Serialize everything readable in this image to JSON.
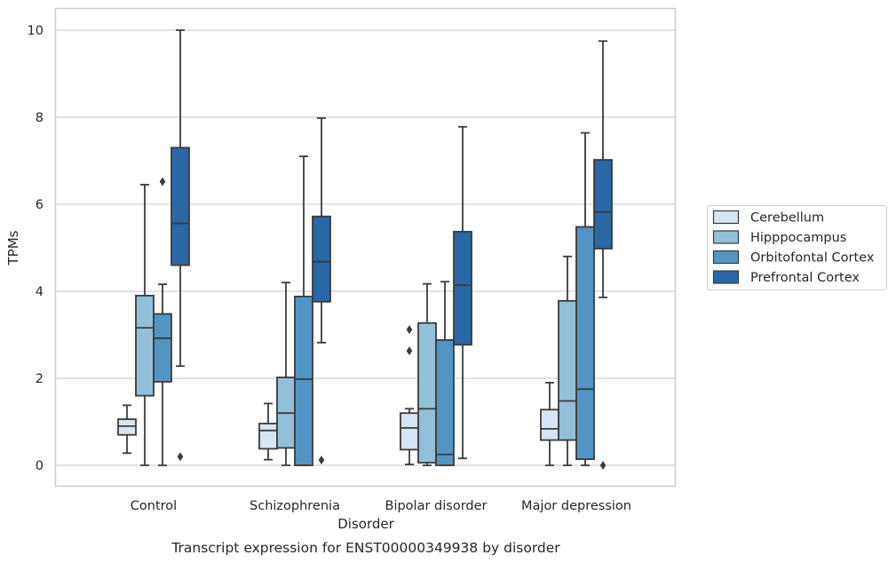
{
  "caption": "Transcript expression for ENST00000349938 by disorder",
  "colors": {
    "Cerebellum": "#d6e5f3",
    "Hipppocampus": "#94bfd9",
    "Orbitofontal Cortex": "#5295c3",
    "Prefrontal Cortex": "#2a67a5",
    "edge": "#3b3b3b",
    "grid": "#d0d0d0",
    "frame": "#cccccc"
  },
  "chart_data": {
    "type": "boxplot",
    "xlabel": "Disorder",
    "ylabel": "TPMs",
    "ylim": [
      -0.48,
      10.5
    ],
    "yticks": [
      0,
      2,
      4,
      6,
      8,
      10
    ],
    "grid": true,
    "legend_position": "right",
    "categories": [
      "Control",
      "Schizophrenia",
      "Bipolar disorder",
      "Major depression"
    ],
    "series": [
      {
        "name": "Cerebellum",
        "boxes": [
          {
            "whislo": 0.28,
            "q1": 0.7,
            "med": 0.9,
            "q3": 1.06,
            "whishi": 1.38,
            "fliers": []
          },
          {
            "whislo": 0.13,
            "q1": 0.38,
            "med": 0.8,
            "q3": 0.96,
            "whishi": 1.42,
            "fliers": []
          },
          {
            "whislo": 0.02,
            "q1": 0.36,
            "med": 0.86,
            "q3": 1.2,
            "whishi": 1.3,
            "fliers": [
              2.63,
              3.12
            ]
          },
          {
            "whislo": 0.0,
            "q1": 0.58,
            "med": 0.84,
            "q3": 1.28,
            "whishi": 1.9,
            "fliers": []
          }
        ]
      },
      {
        "name": "Hipppocampus",
        "boxes": [
          {
            "whislo": 0.0,
            "q1": 1.6,
            "med": 3.16,
            "q3": 3.9,
            "whishi": 6.45,
            "fliers": []
          },
          {
            "whislo": 0.0,
            "q1": 0.4,
            "med": 1.2,
            "q3": 2.02,
            "whishi": 4.2,
            "fliers": []
          },
          {
            "whislo": 0.0,
            "q1": 0.06,
            "med": 1.3,
            "q3": 3.27,
            "whishi": 4.17,
            "fliers": []
          },
          {
            "whislo": 0.0,
            "q1": 0.58,
            "med": 1.48,
            "q3": 3.78,
            "whishi": 4.8,
            "fliers": []
          }
        ]
      },
      {
        "name": "Orbitofontal Cortex",
        "boxes": [
          {
            "whislo": 0.0,
            "q1": 1.92,
            "med": 2.92,
            "q3": 3.48,
            "whishi": 4.16,
            "fliers": [
              6.52
            ]
          },
          {
            "whislo": 0.0,
            "q1": 0.0,
            "med": 1.98,
            "q3": 3.88,
            "whishi": 7.1,
            "fliers": []
          },
          {
            "whislo": 0.0,
            "q1": 0.0,
            "med": 0.25,
            "q3": 2.88,
            "whishi": 4.22,
            "fliers": []
          },
          {
            "whislo": 0.0,
            "q1": 0.14,
            "med": 1.75,
            "q3": 5.48,
            "whishi": 7.64,
            "fliers": []
          }
        ]
      },
      {
        "name": "Prefrontal Cortex",
        "boxes": [
          {
            "whislo": 2.28,
            "q1": 4.6,
            "med": 5.56,
            "q3": 7.3,
            "whishi": 10.0,
            "fliers": [
              0.2
            ]
          },
          {
            "whislo": 2.82,
            "q1": 3.76,
            "med": 4.68,
            "q3": 5.72,
            "whishi": 7.98,
            "fliers": [
              0.12
            ]
          },
          {
            "whislo": 0.16,
            "q1": 2.77,
            "med": 4.14,
            "q3": 5.37,
            "whishi": 7.78,
            "fliers": []
          },
          {
            "whislo": 3.86,
            "q1": 4.98,
            "med": 5.82,
            "q3": 7.02,
            "whishi": 9.75,
            "fliers": [
              0.0
            ]
          }
        ]
      }
    ]
  }
}
